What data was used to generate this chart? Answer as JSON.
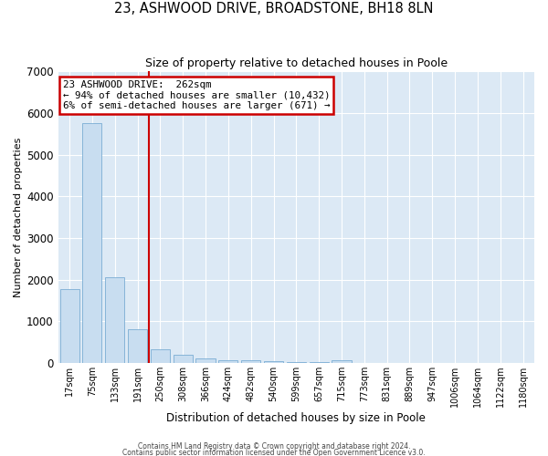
{
  "title": "23, ASHWOOD DRIVE, BROADSTONE, BH18 8LN",
  "subtitle": "Size of property relative to detached houses in Poole",
  "xlabel": "Distribution of detached houses by size in Poole",
  "ylabel": "Number of detached properties",
  "bar_color": "#c8ddf0",
  "bar_edge_color": "#7aadd4",
  "background_color": "#dce9f5",
  "grid_color": "#ffffff",
  "vline_color": "#cc0000",
  "vline_x": 3.5,
  "annotation_box_color": "#cc0000",
  "annotation_line1": "23 ASHWOOD DRIVE:  262sqm",
  "annotation_line2": "← 94% of detached houses are smaller (10,432)",
  "annotation_line3": "6% of semi-detached houses are larger (671) →",
  "categories": [
    "17sqm",
    "75sqm",
    "133sqm",
    "191sqm",
    "250sqm",
    "308sqm",
    "366sqm",
    "424sqm",
    "482sqm",
    "540sqm",
    "599sqm",
    "657sqm",
    "715sqm",
    "773sqm",
    "831sqm",
    "889sqm",
    "947sqm",
    "1006sqm",
    "1064sqm",
    "1122sqm",
    "1180sqm"
  ],
  "values": [
    1780,
    5750,
    2060,
    820,
    340,
    200,
    110,
    80,
    60,
    45,
    35,
    30,
    70,
    0,
    0,
    0,
    0,
    0,
    0,
    0,
    0
  ],
  "ylim": [
    0,
    7000
  ],
  "yticks": [
    0,
    1000,
    2000,
    3000,
    4000,
    5000,
    6000,
    7000
  ],
  "footer1": "Contains HM Land Registry data © Crown copyright and database right 2024.",
  "footer2": "Contains public sector information licensed under the Open Government Licence v3.0."
}
